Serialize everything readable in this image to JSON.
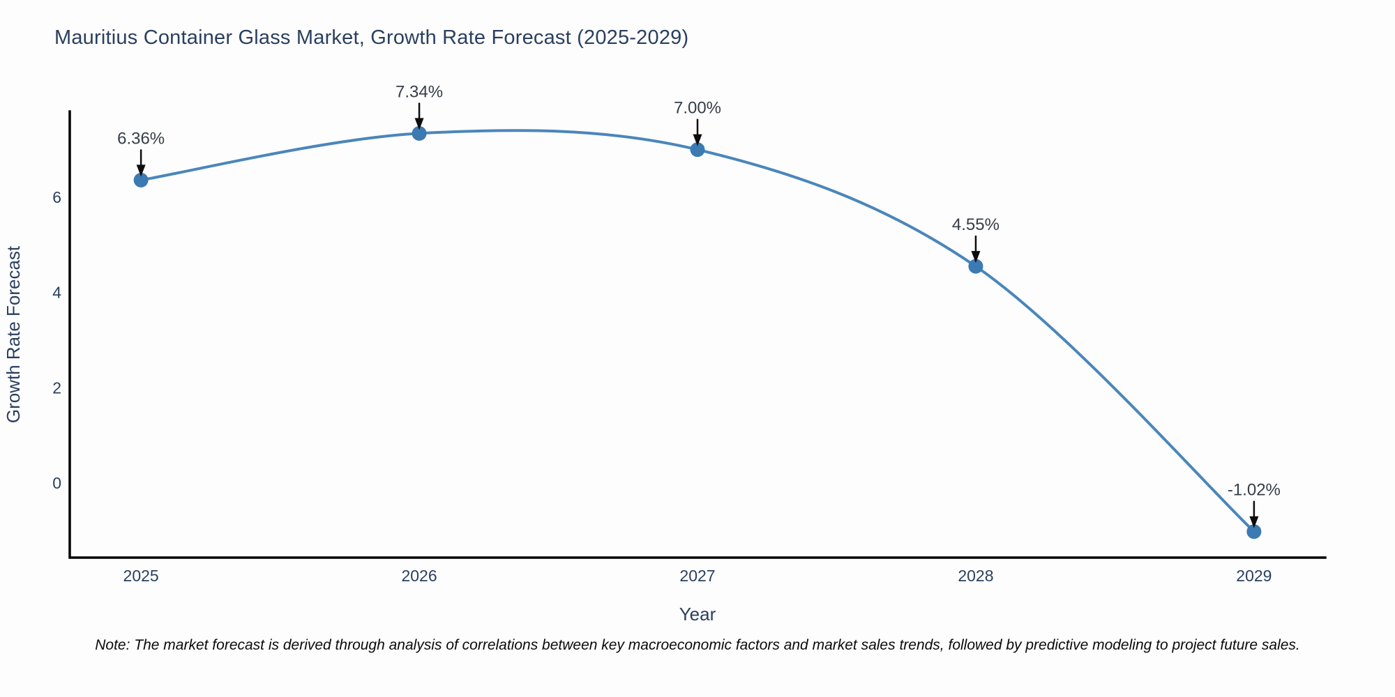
{
  "title": "Mauritius Container Glass Market, Growth Rate Forecast (2025-2029)",
  "note": "Note: The market forecast is derived through analysis of correlations between key macroeconomic factors and market sales trends, followed by predictive modeling to project future sales.",
  "chart_data": {
    "type": "line",
    "line_shape": "spline",
    "x": [
      2025,
      2026,
      2027,
      2028,
      2029
    ],
    "values": [
      6.36,
      7.34,
      7.0,
      4.55,
      -1.02
    ],
    "point_labels": [
      "6.36%",
      "7.34%",
      "7.00%",
      "4.55%",
      "-1.02%"
    ],
    "title": "Mauritius Container Glass Market, Growth Rate Forecast (2025-2029)",
    "xlabel": "Year",
    "ylabel": "Growth Rate Forecast",
    "xtick_labels": [
      "2025",
      "2026",
      "2027",
      "2028",
      "2029"
    ],
    "yticks": [
      0,
      2,
      4,
      6
    ],
    "xlim": [
      2024.744,
      2029.256
    ],
    "ylim": [
      -1.566,
      7.8
    ],
    "grid": false,
    "legend": "none",
    "markers": true,
    "annotation_arrows": true,
    "colors": {
      "line": "#4a86ba",
      "marker": "#3c7ab2",
      "axis": "#000000",
      "tick_label": "#2a3f5f",
      "axis_title": "#2a3f5f",
      "chart_title": "#2a3f5f",
      "annotation_text": "#363d47",
      "arrow": "#0d0d0d",
      "background": "#fdfdfd"
    }
  }
}
